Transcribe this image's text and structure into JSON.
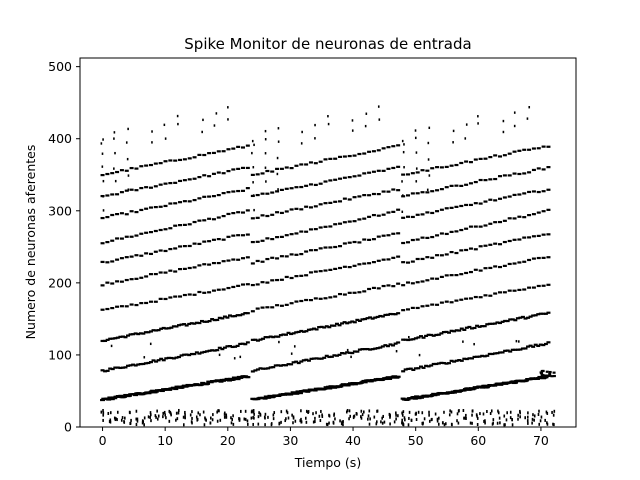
{
  "chart_data": {
    "type": "scatter",
    "title": "Spike Monitor de neuronas de entrada",
    "xlabel": "Tiempo (s)",
    "ylabel": "Numero de neuronas aferentes",
    "xlim": [
      -3.6,
      75.6
    ],
    "ylim": [
      0,
      512
    ],
    "xticks": [
      0,
      10,
      20,
      30,
      40,
      50,
      60,
      70
    ],
    "yticks": [
      0,
      100,
      200,
      300,
      400,
      500
    ],
    "grid": false,
    "legend": "none",
    "marker_color": "#000000",
    "segments": [
      {
        "t_start": 0,
        "t_end": 24
      },
      {
        "t_start": 24,
        "t_end": 48
      },
      {
        "t_start": 48,
        "t_end": 72
      }
    ],
    "series": [
      {
        "type": "band",
        "x": [
          0,
          20
        ],
        "y": [
          38,
          70
        ]
      },
      {
        "type": "band",
        "x": [
          0,
          14
        ],
        "y": [
          78,
          116
        ]
      },
      {
        "type": "band",
        "x": [
          0,
          12
        ],
        "y": [
          120,
          158
        ]
      },
      {
        "type": "band",
        "x": [
          0,
          10
        ],
        "y": [
          162,
          198
        ]
      },
      {
        "type": "band",
        "x": [
          0,
          10
        ],
        "y": [
          198,
          236
        ]
      },
      {
        "type": "band",
        "x": [
          0,
          8
        ],
        "y": [
          228,
          268
        ]
      },
      {
        "type": "band",
        "x": [
          0,
          8
        ],
        "y": [
          256,
          300
        ]
      },
      {
        "type": "band",
        "x": [
          0,
          6
        ],
        "y": [
          290,
          330
        ]
      },
      {
        "type": "band",
        "x": [
          0,
          6
        ],
        "y": [
          320,
          360
        ]
      },
      {
        "type": "band",
        "x": [
          0,
          4
        ],
        "y": [
          350,
          390
        ]
      }
    ]
  }
}
